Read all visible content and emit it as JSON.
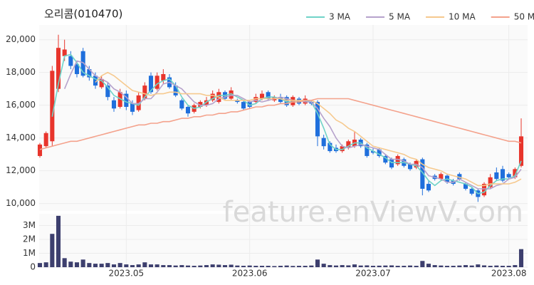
{
  "chart_data": {
    "type": "candlestick",
    "title": "오리콤(010470)",
    "watermark": "feature.enViewV.com",
    "categories": [
      null,
      null,
      null,
      null,
      null,
      null,
      null,
      null,
      null,
      null,
      null,
      null,
      null,
      null,
      "2023.05",
      null,
      null,
      null,
      null,
      null,
      null,
      null,
      null,
      null,
      null,
      null,
      null,
      null,
      null,
      null,
      null,
      null,
      null,
      null,
      "2023.06",
      null,
      null,
      null,
      null,
      null,
      null,
      null,
      null,
      null,
      null,
      null,
      null,
      null,
      null,
      null,
      null,
      null,
      null,
      null,
      "2023.07",
      null,
      null,
      null,
      null,
      null,
      null,
      null,
      null,
      null,
      null,
      null,
      null,
      null,
      null,
      null,
      null,
      null,
      null,
      null,
      null,
      null,
      "2023.08",
      null,
      null
    ],
    "open": [
      12900,
      13500,
      13800,
      17000,
      19000,
      19000,
      18500,
      19300,
      18200,
      17800,
      17100,
      17200,
      16300,
      15900,
      16700,
      16100,
      15700,
      16400,
      17800,
      17000,
      17500,
      17700,
      17200,
      16300,
      15900,
      15600,
      15900,
      16000,
      16300,
      16200,
      16800,
      16400,
      16300,
      16200,
      16200,
      16200,
      16400,
      16800,
      16300,
      16500,
      16500,
      16000,
      16400,
      16100,
      16200,
      16200,
      14000,
      13700,
      13400,
      13200,
      13400,
      13500,
      13900,
      13600,
      13200,
      13300,
      12900,
      12700,
      12400,
      12700,
      12400,
      12200,
      12700,
      11200,
      11700,
      11500,
      11700,
      11400,
      11800,
      11200,
      10900,
      10800,
      10500,
      11000,
      11900,
      12100,
      11800,
      11600,
      12300
    ],
    "high": [
      13700,
      14400,
      18400,
      20300,
      20000,
      19300,
      18700,
      19500,
      18400,
      18000,
      17800,
      17400,
      16500,
      17000,
      16900,
      16300,
      16800,
      17400,
      18000,
      18000,
      18200,
      17900,
      17400,
      16400,
      16000,
      16100,
      16300,
      16500,
      16900,
      17000,
      16900,
      17100,
      16400,
      16300,
      16300,
      16700,
      16900,
      16900,
      16600,
      16700,
      16600,
      16600,
      16500,
      16600,
      16300,
      16300,
      14200,
      13800,
      13600,
      13600,
      13900,
      14400,
      14000,
      13700,
      13400,
      13400,
      13000,
      12800,
      13000,
      12800,
      12500,
      12700,
      12800,
      11400,
      11800,
      11900,
      11800,
      11500,
      11900,
      11300,
      11000,
      10900,
      11300,
      11800,
      12200,
      12300,
      11900,
      12200,
      15200
    ],
    "low": [
      12800,
      13400,
      13500,
      16800,
      18700,
      18200,
      17700,
      17700,
      17500,
      17000,
      17000,
      16300,
      15600,
      15800,
      15700,
      15400,
      15600,
      16300,
      16700,
      16900,
      17300,
      17000,
      16500,
      15700,
      15300,
      15500,
      15800,
      15900,
      16200,
      16100,
      16300,
      16300,
      16100,
      15700,
      15800,
      16100,
      16300,
      16300,
      16200,
      16100,
      15900,
      15900,
      16000,
      16000,
      16000,
      13500,
      13300,
      13100,
      13100,
      13100,
      13300,
      13400,
      13400,
      12800,
      13000,
      12800,
      12400,
      12100,
      12300,
      12200,
      12000,
      12100,
      10500,
      10700,
      11400,
      11400,
      11200,
      11100,
      11400,
      10800,
      10500,
      10100,
      10400,
      10900,
      11400,
      11300,
      11500,
      11500,
      12200
    ],
    "close": [
      13600,
      14300,
      18100,
      19500,
      19400,
      18400,
      17900,
      17800,
      17700,
      17200,
      17600,
      16500,
      15800,
      16800,
      15900,
      15600,
      16600,
      17200,
      16800,
      17800,
      17900,
      17100,
      16600,
      15800,
      15500,
      16000,
      16200,
      16300,
      16700,
      16800,
      16400,
      16900,
      16200,
      15800,
      15900,
      16500,
      16700,
      16400,
      16500,
      16200,
      16000,
      16500,
      16100,
      16400,
      16100,
      14100,
      13500,
      13200,
      13200,
      13500,
      13800,
      13900,
      13500,
      12900,
      13100,
      12900,
      12500,
      12200,
      12900,
      12300,
      12100,
      12600,
      10900,
      10800,
      11500,
      11800,
      11300,
      11200,
      11500,
      10900,
      10600,
      10400,
      11200,
      11600,
      11500,
      11400,
      11600,
      12100,
      14100
    ],
    "up_color": "#e8352c",
    "down_color": "#1f6fdc",
    "series": [
      {
        "name": "3 MA",
        "color": "#6fd3c8",
        "values": [
          null,
          null,
          15300,
          17300,
          19000,
          19100,
          18600,
          18000,
          17800,
          17600,
          17500,
          17100,
          16600,
          16400,
          16200,
          16100,
          16000,
          16500,
          16900,
          17300,
          17500,
          17600,
          17200,
          16500,
          16000,
          15800,
          15900,
          16200,
          16400,
          16600,
          16600,
          16700,
          16500,
          16300,
          16000,
          16100,
          16400,
          16500,
          16500,
          16400,
          16200,
          16200,
          16200,
          16300,
          16200,
          15500,
          14600,
          13600,
          13300,
          13300,
          13500,
          13700,
          13700,
          13400,
          13200,
          13000,
          12800,
          12500,
          12500,
          12500,
          12400,
          12300,
          11900,
          11400,
          11100,
          11400,
          11500,
          11400,
          11300,
          11200,
          11000,
          10600,
          10700,
          11100,
          11400,
          11500,
          11500,
          11700,
          12600
        ]
      },
      {
        "name": "5 MA",
        "color": "#b6a2cc",
        "values": [
          null,
          null,
          null,
          null,
          17000,
          17900,
          18700,
          18600,
          18200,
          17800,
          17600,
          17400,
          17000,
          16800,
          16500,
          16100,
          16100,
          16400,
          16400,
          16800,
          17300,
          17400,
          17200,
          17000,
          16600,
          16200,
          16000,
          16000,
          16100,
          16400,
          16500,
          16600,
          16600,
          16400,
          16200,
          16300,
          16200,
          16300,
          16400,
          16500,
          16400,
          16300,
          16300,
          16200,
          16200,
          15800,
          15200,
          14700,
          14000,
          13500,
          13400,
          13500,
          13600,
          13500,
          13400,
          13300,
          13000,
          12700,
          12700,
          12600,
          12400,
          12400,
          12200,
          11700,
          11600,
          11500,
          11300,
          11300,
          11500,
          11300,
          11100,
          10900,
          10900,
          10900,
          11100,
          11200,
          11500,
          11600,
          12100
        ]
      },
      {
        "name": "10 MA",
        "color": "#f6c98e",
        "values": [
          null,
          null,
          null,
          null,
          null,
          null,
          null,
          null,
          null,
          17400,
          17800,
          18000,
          17800,
          17500,
          17200,
          16900,
          16800,
          16700,
          16600,
          16700,
          16700,
          16800,
          16800,
          16700,
          16700,
          16700,
          16700,
          16600,
          16600,
          16500,
          16300,
          16300,
          16300,
          16300,
          16300,
          16400,
          16400,
          16400,
          16400,
          16400,
          16300,
          16300,
          16300,
          16300,
          16300,
          16100,
          15800,
          15500,
          15100,
          14900,
          14600,
          14400,
          14100,
          13800,
          13500,
          13400,
          13300,
          13200,
          13100,
          13000,
          12800,
          12700,
          12400,
          12200,
          12100,
          12000,
          11800,
          11700,
          11600,
          11500,
          11300,
          11100,
          11100,
          11200,
          11200,
          11200,
          11200,
          11300,
          11500
        ]
      },
      {
        "name": "50 MA",
        "color": "#f4a28c",
        "values": [
          13300,
          13400,
          13500,
          13600,
          13700,
          13800,
          13800,
          13900,
          14000,
          14100,
          14200,
          14300,
          14400,
          14500,
          14600,
          14700,
          14800,
          14800,
          14900,
          14900,
          15000,
          15000,
          15100,
          15200,
          15200,
          15300,
          15300,
          15400,
          15400,
          15500,
          15500,
          15600,
          15600,
          15700,
          15800,
          15900,
          15900,
          16000,
          16000,
          16100,
          16100,
          16200,
          16200,
          16300,
          16300,
          16400,
          16400,
          16400,
          16400,
          16400,
          16400,
          16300,
          16200,
          16100,
          16000,
          15900,
          15800,
          15700,
          15600,
          15500,
          15400,
          15300,
          15200,
          15100,
          15000,
          14900,
          14800,
          14700,
          14600,
          14500,
          14400,
          14300,
          14200,
          14100,
          14000,
          13900,
          13800,
          13800,
          13700
        ]
      }
    ],
    "ylim": [
      9550,
      20900
    ],
    "yticks": [
      {
        "value": 10000,
        "label": "10,000"
      },
      {
        "value": 12000,
        "label": "12,000"
      },
      {
        "value": 14000,
        "label": "14,000"
      },
      {
        "value": 16000,
        "label": "16,000"
      },
      {
        "value": 18000,
        "label": "18,000"
      },
      {
        "value": 20000,
        "label": "20,000"
      }
    ],
    "grid": true,
    "legend": "top-right",
    "volume": {
      "color": "#3d3f6e",
      "values": [
        300000,
        350000,
        2400000,
        3700000,
        650000,
        400000,
        350000,
        550000,
        300000,
        250000,
        250000,
        300000,
        200000,
        300000,
        200000,
        150000,
        200000,
        350000,
        200000,
        200000,
        150000,
        150000,
        120000,
        150000,
        120000,
        100000,
        120000,
        150000,
        200000,
        180000,
        150000,
        180000,
        120000,
        100000,
        120000,
        100000,
        100000,
        100000,
        80000,
        100000,
        120000,
        90000,
        100000,
        100000,
        120000,
        550000,
        250000,
        150000,
        120000,
        150000,
        130000,
        200000,
        120000,
        130000,
        100000,
        110000,
        120000,
        130000,
        100000,
        100000,
        120000,
        100000,
        450000,
        250000,
        150000,
        120000,
        100000,
        100000,
        120000,
        150000,
        120000,
        200000,
        130000,
        100000,
        120000,
        100000,
        100000,
        150000,
        1300000
      ],
      "ylim": [
        0,
        3900000
      ],
      "yticks": [
        0,
        {
          "value": 1000000,
          "label": "1M"
        },
        {
          "value": 2000000,
          "label": "2M"
        },
        {
          "value": 3000000,
          "label": "3M"
        }
      ]
    }
  }
}
